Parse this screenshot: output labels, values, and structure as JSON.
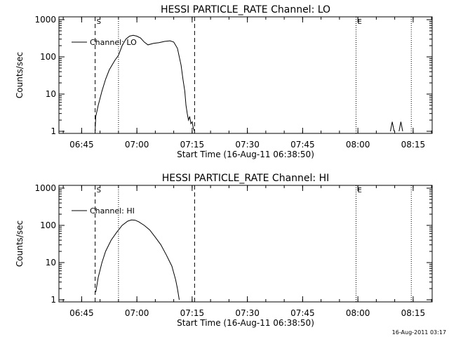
{
  "footer": {
    "timestamp": "16-Aug-2011 03:17"
  },
  "chart_data": [
    {
      "type": "line",
      "title": "HESSI PARTICLE_RATE Channel: LO",
      "xlabel": "Start Time (16-Aug-11 06:38:50)",
      "ylabel": "Counts/sec",
      "yscale": "log",
      "ylim": [
        1,
        1000
      ],
      "xlim": [
        "06:38:50",
        "08:20:10"
      ],
      "xticks": [
        "06:45",
        "07:00",
        "07:15",
        "07:30",
        "07:45",
        "08:00",
        "08:15"
      ],
      "yticks": [
        "1",
        "10",
        "100",
        "1000"
      ],
      "grid": false,
      "legend": {
        "position": "top-left",
        "entries": [
          "Channel: LO"
        ]
      },
      "markers": [
        {
          "label": "S",
          "time": "06:48:40",
          "style": "dashed"
        },
        {
          "label": "",
          "time": "06:55:00",
          "style": "dotted"
        },
        {
          "label": "",
          "time": "07:15:40",
          "style": "dashed"
        },
        {
          "label": "E",
          "time": "07:59:30",
          "style": "dotted"
        },
        {
          "label": "",
          "time": "08:14:30",
          "style": "dotted"
        }
      ],
      "series": [
        {
          "name": "Channel: LO",
          "points": [
            [
              "06:48:40",
              1
            ],
            [
              "06:48:50",
              2.5
            ],
            [
              "06:49:30",
              5
            ],
            [
              "06:50:30",
              12
            ],
            [
              "06:51:30",
              25
            ],
            [
              "06:52:30",
              45
            ],
            [
              "06:54:00",
              80
            ],
            [
              "06:55:00",
              110
            ],
            [
              "06:56:00",
              200
            ],
            [
              "06:57:00",
              300
            ],
            [
              "06:58:00",
              360
            ],
            [
              "06:59:00",
              380
            ],
            [
              "07:00:00",
              360
            ],
            [
              "07:01:00",
              320
            ],
            [
              "07:02:00",
              250
            ],
            [
              "07:03:00",
              210
            ],
            [
              "07:04:30",
              230
            ],
            [
              "07:06:00",
              240
            ],
            [
              "07:07:30",
              260
            ],
            [
              "07:09:00",
              270
            ],
            [
              "07:10:00",
              250
            ],
            [
              "07:11:00",
              170
            ],
            [
              "07:12:00",
              60
            ],
            [
              "07:12:30",
              25
            ],
            [
              "07:13:00",
              12
            ],
            [
              "07:13:20",
              5
            ],
            [
              "07:13:40",
              3
            ],
            [
              "07:14:00",
              2
            ],
            [
              "07:14:20",
              2.5
            ],
            [
              "07:14:40",
              1.6
            ],
            [
              "07:15:00",
              1.8
            ],
            [
              "07:15:20",
              1.2
            ],
            [
              "07:15:40",
              1.0
            ]
          ]
        },
        {
          "name": "",
          "points": [
            [
              "08:08:50",
              1
            ],
            [
              "08:09:20",
              1.8
            ],
            [
              "08:09:50",
              1
            ]
          ]
        },
        {
          "name": "",
          "points": [
            [
              "08:11:10",
              1
            ],
            [
              "08:11:40",
              1.8
            ],
            [
              "08:12:10",
              1
            ]
          ]
        }
      ]
    },
    {
      "type": "line",
      "title": "HESSI PARTICLE_RATE Channel: HI",
      "xlabel": "Start Time (16-Aug-11 06:38:50)",
      "ylabel": "Counts/sec",
      "yscale": "log",
      "ylim": [
        1,
        1000
      ],
      "xlim": [
        "06:38:50",
        "08:20:10"
      ],
      "xticks": [
        "06:45",
        "07:00",
        "07:15",
        "07:30",
        "07:45",
        "08:00",
        "08:15"
      ],
      "yticks": [
        "1",
        "10",
        "100",
        "1000"
      ],
      "grid": false,
      "legend": {
        "position": "top-left",
        "entries": [
          "Channel: HI"
        ]
      },
      "markers": [
        {
          "label": "S",
          "time": "06:48:40",
          "style": "dashed"
        },
        {
          "label": "",
          "time": "06:55:00",
          "style": "dotted"
        },
        {
          "label": "",
          "time": "07:15:40",
          "style": "dashed"
        },
        {
          "label": "E",
          "time": "07:59:30",
          "style": "dotted"
        },
        {
          "label": "",
          "time": "08:14:30",
          "style": "dotted"
        }
      ],
      "series": [
        {
          "name": "Channel: HI",
          "points": [
            [
              "06:48:50",
              1.6
            ],
            [
              "06:49:30",
              4
            ],
            [
              "06:50:30",
              10
            ],
            [
              "06:51:30",
              20
            ],
            [
              "06:53:00",
              40
            ],
            [
              "06:54:30",
              65
            ],
            [
              "06:56:00",
              100
            ],
            [
              "06:57:30",
              130
            ],
            [
              "06:58:30",
              140
            ],
            [
              "06:59:30",
              138
            ],
            [
              "07:00:30",
              125
            ],
            [
              "07:02:00",
              100
            ],
            [
              "07:03:30",
              75
            ],
            [
              "07:05:00",
              48
            ],
            [
              "07:06:30",
              30
            ],
            [
              "07:08:00",
              16
            ],
            [
              "07:09:30",
              8
            ],
            [
              "07:10:30",
              3.5
            ],
            [
              "07:11:00",
              2
            ],
            [
              "07:11:30",
              1
            ]
          ]
        }
      ]
    }
  ]
}
